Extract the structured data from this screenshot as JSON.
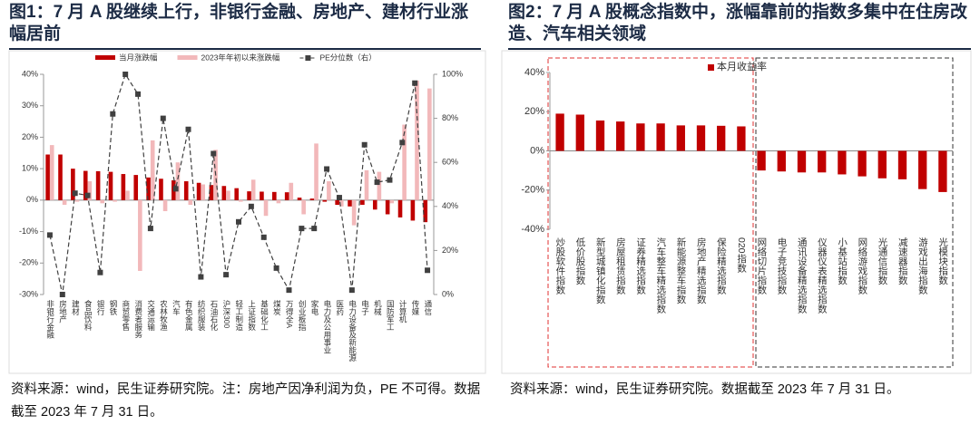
{
  "chart_data": [
    {
      "type": "combo",
      "title": "图1：7 月 A 股继续上行，非银行金融、房地产、建材行业涨幅居前",
      "note": "资料来源：wind，民生证券研究院。注：房地产因净利润为负，PE 不可得。数据截至 2023 年 7 月 31 日。",
      "categories": [
        "非银行金融",
        "房地产",
        "建材",
        "食品饮料",
        "银行",
        "钢铁",
        "商贸零售",
        "消费者服务",
        "交通运输",
        "农林牧渔",
        "汽车",
        "有色金属",
        "纺织服装",
        "石油石化",
        "沪深300",
        "轻工制造",
        "上证指数",
        "基础化工",
        "煤炭",
        "万得全A",
        "创业板指",
        "家电",
        "电力及公用事业",
        "医药",
        "电力设备及新能源",
        "电子",
        "机械",
        "国防军工",
        "计算机",
        "传媒",
        "通信"
      ],
      "series": [
        {
          "name": "当月涨跌幅",
          "type": "bar",
          "color": "#c00000",
          "values": [
            14.5,
            14.5,
            10,
            9.3,
            9.2,
            9,
            8.3,
            8,
            7.2,
            6.8,
            6.3,
            6,
            5.5,
            4.8,
            4.5,
            3.8,
            2.8,
            2.7,
            2.6,
            2.5,
            0.8,
            0.5,
            -0.5,
            -1.5,
            -2,
            -1.5,
            -3,
            -4.5,
            -5.5,
            -6.5,
            -7
          ]
        },
        {
          "name": "2023年年初以来涨跌幅",
          "type": "bar",
          "color": "#f2b8ba",
          "values": [
            17.5,
            -1.5,
            -0.5,
            6,
            -1,
            -0.5,
            3,
            -22.5,
            19,
            -3.5,
            12,
            -1.5,
            5,
            16,
            3,
            -0.5,
            6.5,
            -5,
            -1,
            5.5,
            -4.5,
            18,
            6,
            -2,
            -8,
            9.5,
            9,
            -1,
            24,
            38,
            35.5
          ]
        },
        {
          "name": "PE分位数（右）",
          "type": "line",
          "axis": "y2",
          "color": "#404040",
          "values": [
            27,
            0,
            46,
            45,
            10,
            82,
            100,
            91,
            30,
            80,
            48,
            75,
            8,
            64,
            9,
            33,
            40,
            26,
            12,
            2,
            30,
            30,
            57,
            44,
            2,
            68,
            51,
            52,
            69,
            96,
            11
          ]
        }
      ],
      "ylim": [
        -30,
        40
      ],
      "yticks": [
        {
          "value": -30,
          "label": "-30%"
        },
        {
          "value": -20,
          "label": "-20%"
        },
        {
          "value": -10,
          "label": "-10%"
        },
        {
          "value": 0,
          "label": "0%"
        },
        {
          "value": 10,
          "label": "10%"
        },
        {
          "value": 20,
          "label": "20%"
        },
        {
          "value": 30,
          "label": "30%"
        },
        {
          "value": 40,
          "label": "40%"
        }
      ],
      "y2lim": [
        0,
        100
      ],
      "y2ticks": [
        {
          "value": 0,
          "label": "0%"
        },
        {
          "value": 20,
          "label": "20%"
        },
        {
          "value": 40,
          "label": "40%"
        },
        {
          "value": 60,
          "label": "60%"
        },
        {
          "value": 80,
          "label": "80%"
        },
        {
          "value": 100,
          "label": "100%"
        }
      ]
    },
    {
      "type": "bar",
      "title": "图2：7 月 A 股概念指数中，涨幅靠前的指数多集中在住房改造、汽车相关领域",
      "note": "资料来源：wind，民生证券研究院。数据截至 2023 年 7 月 31 日。",
      "categories": [
        "炒股软件指数",
        "低价股指数",
        "新型城镇化指数",
        "房屋租赁指数",
        "证券精选指数",
        "汽车整车精选指数",
        "新能源整车指数",
        "房地产精选指数",
        "保险精选指数",
        "020指数",
        "网络切片指数",
        "电子竞技指数",
        "通讯设备精选指数",
        "仪器仪表精选指数",
        "小基站指数",
        "网络游戏指数",
        "光通信指数",
        "减速器指数",
        "游戏出海指数",
        "光模块指数"
      ],
      "series": [
        {
          "name": "本月收益率",
          "type": "bar",
          "color": "#c00000",
          "values": [
            19,
            18.5,
            15.5,
            15,
            14,
            14,
            13,
            13,
            12.8,
            12.5,
            -10,
            -10.5,
            -11,
            -11,
            -12,
            -13,
            -14,
            -14.5,
            -19.5,
            -21
          ]
        }
      ],
      "ylim": [
        -40,
        40
      ],
      "yticks": [
        {
          "value": -40,
          "label": "-40%"
        },
        {
          "value": -20,
          "label": "-20%"
        },
        {
          "value": 0,
          "label": "0%"
        },
        {
          "value": 20,
          "label": "20%"
        },
        {
          "value": 40,
          "label": "40%"
        }
      ]
    }
  ]
}
